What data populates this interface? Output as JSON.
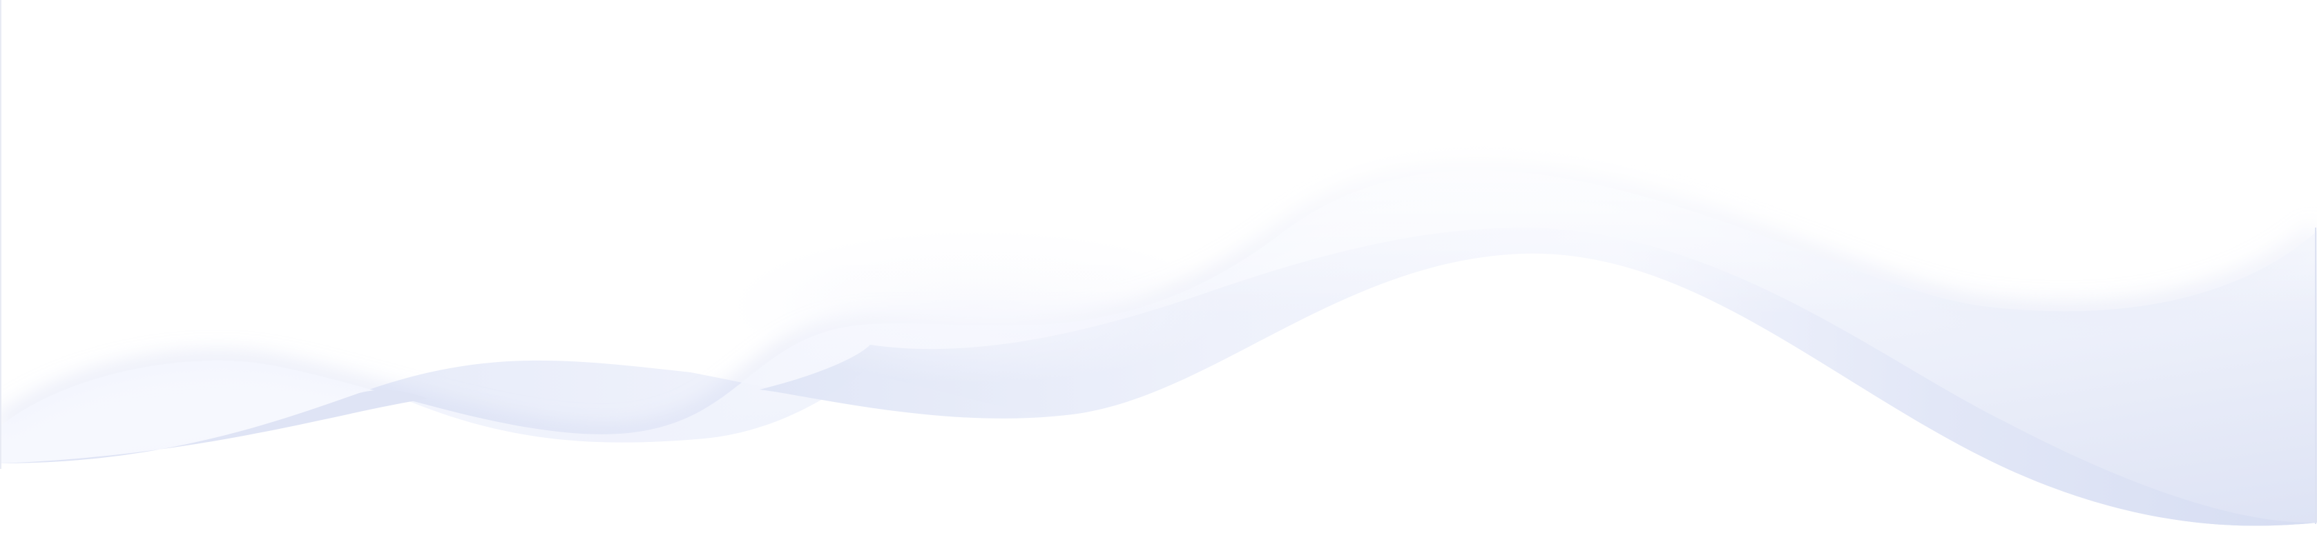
{
  "scene": {
    "description_label": "",
    "colors": {
      "background": "#ffffff",
      "wave_light": "#eef1fb",
      "wave_mid": "#dde3f4",
      "wave_dark": "#d5dcf1",
      "highlight": "#f6f8fe",
      "shadow": "#c9d2ee"
    }
  }
}
